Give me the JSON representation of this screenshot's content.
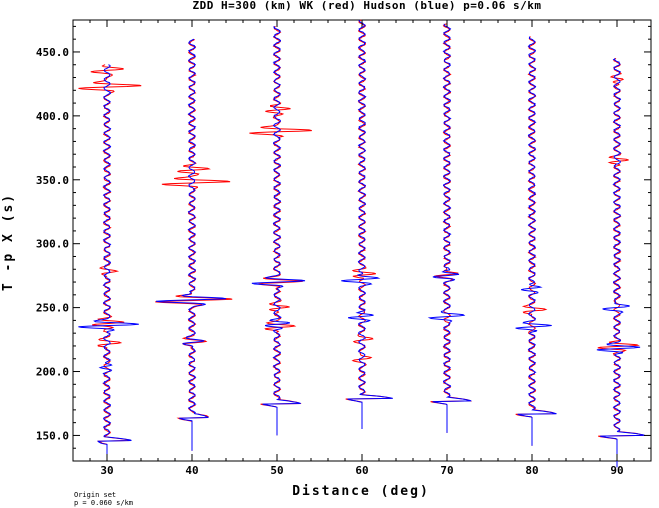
{
  "chart_data": {
    "type": "line",
    "title": "ZDD H=300 (km) WK (red) Hudson (blue) p=0.06 s/km",
    "xlabel": "Distance (deg)",
    "ylabel": "T -p X (s)",
    "xlim": [
      26,
      94
    ],
    "ylim": [
      130,
      475
    ],
    "xticks": [
      30,
      40,
      50,
      60,
      70,
      80,
      90
    ],
    "yticks": [
      150.0,
      200.0,
      250.0,
      300.0,
      350.0,
      400.0,
      450.0
    ],
    "ytick_labels": [
      "150.0",
      "200.0",
      "250.0",
      "300.0",
      "350.0",
      "400.0",
      "450.0"
    ],
    "grid": false,
    "series": [
      {
        "name": "WK",
        "color": "#ff0000"
      },
      {
        "name": "Hudson",
        "color": "#0000ff"
      }
    ],
    "traces": [
      {
        "distance": 30,
        "t_start": 130,
        "t_end": 440,
        "onset": 143,
        "amp": 2.5,
        "red_bursts": [
          [
            423,
            4.0
          ],
          [
            436,
            2.0
          ],
          [
            238,
            2.5
          ],
          [
            222,
            1.5
          ],
          [
            278,
            1.0
          ]
        ],
        "blue_bursts": [
          [
            236,
            4.0
          ],
          [
            204,
            1.0
          ]
        ]
      },
      {
        "distance": 40,
        "t_start": 138,
        "t_end": 460,
        "onset": 161,
        "amp": 2.2,
        "red_bursts": [
          [
            348,
            4.5
          ],
          [
            358,
            2.5
          ],
          [
            256,
            5.0
          ],
          [
            223,
            1.5
          ]
        ],
        "blue_bursts": [
          [
            256,
            4.5
          ],
          [
            223,
            1.2
          ]
        ]
      },
      {
        "distance": 50,
        "t_start": 150,
        "t_end": 470,
        "onset": 172,
        "amp": 3.0,
        "red_bursts": [
          [
            388,
            4.0
          ],
          [
            405,
            2.0
          ],
          [
            270,
            3.0
          ],
          [
            235,
            2.0
          ],
          [
            250,
            1.5
          ]
        ],
        "blue_bursts": [
          [
            270,
            3.5
          ],
          [
            237,
            2.0
          ]
        ]
      },
      {
        "distance": 60,
        "t_start": 155,
        "t_end": 475,
        "onset": 176,
        "amp": 3.5,
        "red_bursts": [
          [
            276,
            1.8
          ],
          [
            225,
            1.0
          ],
          [
            210,
            1.0
          ]
        ],
        "blue_bursts": [
          [
            272,
            2.5
          ],
          [
            243,
            2.0
          ]
        ]
      },
      {
        "distance": 70,
        "t_start": 152,
        "t_end": 472,
        "onset": 174,
        "amp": 3.0,
        "red_bursts": [
          [
            276,
            1.5
          ]
        ],
        "blue_bursts": [
          [
            275,
            2.0
          ],
          [
            243,
            2.0
          ]
        ]
      },
      {
        "distance": 80,
        "t_start": 142,
        "t_end": 462,
        "onset": 164,
        "amp": 3.0,
        "red_bursts": [
          [
            248,
            1.5
          ]
        ],
        "blue_bursts": [
          [
            235,
            2.5
          ],
          [
            265,
            1.5
          ]
        ]
      },
      {
        "distance": 90,
        "t_start": 125,
        "t_end": 445,
        "onset": 147,
        "amp": 3.5,
        "red_bursts": [
          [
            220,
            3.0
          ],
          [
            365,
            1.5
          ],
          [
            428,
            1.0
          ]
        ],
        "blue_bursts": [
          [
            218,
            3.0
          ],
          [
            250,
            1.5
          ]
        ]
      }
    ]
  },
  "footer": {
    "line1": "Origin set",
    "line2": "p = 0.060 s/km"
  }
}
